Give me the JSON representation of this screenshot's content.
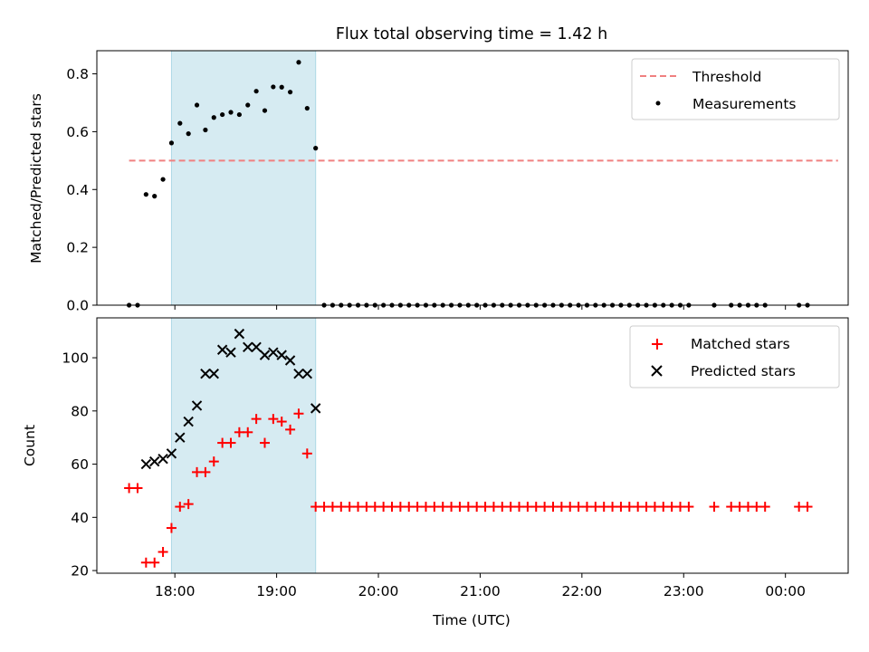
{
  "title": "Flux total observing time = 1.42 h",
  "colors": {
    "threshold": "#f08080",
    "measurements": "#000000",
    "matched": "#ff0000",
    "predicted": "#000000",
    "span": "#add8e6"
  },
  "chart_data": [
    {
      "type": "scatter",
      "title": "Flux total observing time = 1.42 h",
      "xlabel": "",
      "ylabel": "Matched/Predicted stars",
      "ylim": [
        0.0,
        0.88
      ],
      "yticks": [
        0.0,
        0.2,
        0.4,
        0.6,
        0.8
      ],
      "ytick_labels": [
        "0.0",
        "0.2",
        "0.4",
        "0.6",
        "0.8"
      ],
      "xlim": [
        "17:14",
        "24:37"
      ],
      "xticks": [
        "18:00",
        "19:00",
        "20:00",
        "21:00",
        "22:00",
        "23:00",
        "24:00"
      ],
      "shaded_span": [
        "17:58",
        "19:23"
      ],
      "legend_placement": "top-right",
      "threshold": {
        "name": "Threshold",
        "y": 0.5,
        "x_start": "17:33",
        "x_end": "24:31",
        "style": "dashed"
      },
      "series": [
        {
          "name": "Measurements",
          "points": [
            [
              "17:33",
              0.0
            ],
            [
              "17:38",
              0.0
            ],
            [
              "17:43",
              0.383
            ],
            [
              "17:48",
              0.377
            ],
            [
              "17:53",
              0.435
            ],
            [
              "17:58",
              0.561
            ],
            [
              "18:03",
              0.629
            ],
            [
              "18:08",
              0.593
            ],
            [
              "18:13",
              0.692
            ],
            [
              "18:18",
              0.606
            ],
            [
              "18:23",
              0.649
            ],
            [
              "18:28",
              0.659
            ],
            [
              "18:33",
              0.667
            ],
            [
              "18:38",
              0.659
            ],
            [
              "18:43",
              0.692
            ],
            [
              "18:48",
              0.74
            ],
            [
              "18:53",
              0.673
            ],
            [
              "18:58",
              0.755
            ],
            [
              "19:03",
              0.754
            ],
            [
              "19:08",
              0.737
            ],
            [
              "19:13",
              0.84
            ],
            [
              "19:18",
              0.681
            ],
            [
              "19:23",
              0.543
            ],
            [
              "19:28",
              0.0
            ],
            [
              "19:33",
              0.0
            ],
            [
              "19:38",
              0.0
            ],
            [
              "19:43",
              0.0
            ],
            [
              "19:48",
              0.0
            ],
            [
              "19:53",
              0.0
            ],
            [
              "19:58",
              0.0
            ],
            [
              "20:03",
              0.0
            ],
            [
              "20:08",
              0.0
            ],
            [
              "20:13",
              0.0
            ],
            [
              "20:18",
              0.0
            ],
            [
              "20:23",
              0.0
            ],
            [
              "20:28",
              0.0
            ],
            [
              "20:33",
              0.0
            ],
            [
              "20:38",
              0.0
            ],
            [
              "20:43",
              0.0
            ],
            [
              "20:48",
              0.0
            ],
            [
              "20:53",
              0.0
            ],
            [
              "20:58",
              0.0
            ],
            [
              "21:03",
              0.0
            ],
            [
              "21:08",
              0.0
            ],
            [
              "21:13",
              0.0
            ],
            [
              "21:18",
              0.0
            ],
            [
              "21:23",
              0.0
            ],
            [
              "21:28",
              0.0
            ],
            [
              "21:33",
              0.0
            ],
            [
              "21:38",
              0.0
            ],
            [
              "21:43",
              0.0
            ],
            [
              "21:48",
              0.0
            ],
            [
              "21:53",
              0.0
            ],
            [
              "21:58",
              0.0
            ],
            [
              "22:03",
              0.0
            ],
            [
              "22:08",
              0.0
            ],
            [
              "22:13",
              0.0
            ],
            [
              "22:18",
              0.0
            ],
            [
              "22:23",
              0.0
            ],
            [
              "22:28",
              0.0
            ],
            [
              "22:33",
              0.0
            ],
            [
              "22:38",
              0.0
            ],
            [
              "22:43",
              0.0
            ],
            [
              "22:48",
              0.0
            ],
            [
              "22:53",
              0.0
            ],
            [
              "22:58",
              0.0
            ],
            [
              "23:03",
              0.0
            ],
            [
              "23:18",
              0.0
            ],
            [
              "23:28",
              0.0
            ],
            [
              "23:33",
              0.0
            ],
            [
              "23:38",
              0.0
            ],
            [
              "23:43",
              0.0
            ],
            [
              "23:48",
              0.0
            ],
            [
              "24:08",
              0.0
            ],
            [
              "24:13",
              0.0
            ]
          ]
        }
      ]
    },
    {
      "type": "scatter",
      "title": "",
      "xlabel": "Time (UTC)",
      "ylabel": "Count",
      "ylim": [
        19,
        115
      ],
      "yticks": [
        20,
        40,
        60,
        80,
        100
      ],
      "ytick_labels": [
        "20",
        "40",
        "60",
        "80",
        "100"
      ],
      "xlim": [
        "17:14",
        "24:37"
      ],
      "xticks": [
        "18:00",
        "19:00",
        "20:00",
        "21:00",
        "22:00",
        "23:00",
        "24:00"
      ],
      "xtick_labels": [
        "18:00",
        "19:00",
        "20:00",
        "21:00",
        "22:00",
        "23:00",
        "00:00"
      ],
      "shaded_span": [
        "17:58",
        "19:23"
      ],
      "legend_placement": "top-right",
      "series": [
        {
          "name": "Matched stars",
          "marker": "plus",
          "points": [
            [
              "17:33",
              51
            ],
            [
              "17:38",
              51
            ],
            [
              "17:43",
              23
            ],
            [
              "17:48",
              23
            ],
            [
              "17:53",
              27
            ],
            [
              "17:58",
              36
            ],
            [
              "18:03",
              44
            ],
            [
              "18:08",
              45
            ],
            [
              "18:13",
              57
            ],
            [
              "18:18",
              57
            ],
            [
              "18:23",
              61
            ],
            [
              "18:28",
              68
            ],
            [
              "18:33",
              68
            ],
            [
              "18:38",
              72
            ],
            [
              "18:43",
              72
            ],
            [
              "18:48",
              77
            ],
            [
              "18:53",
              68
            ],
            [
              "18:58",
              77
            ],
            [
              "19:03",
              76
            ],
            [
              "19:08",
              73
            ],
            [
              "19:13",
              79
            ],
            [
              "19:18",
              64
            ],
            [
              "19:23",
              44
            ],
            [
              "19:28",
              44
            ],
            [
              "19:33",
              44
            ],
            [
              "19:38",
              44
            ],
            [
              "19:43",
              44
            ],
            [
              "19:48",
              44
            ],
            [
              "19:53",
              44
            ],
            [
              "19:58",
              44
            ],
            [
              "20:03",
              44
            ],
            [
              "20:08",
              44
            ],
            [
              "20:13",
              44
            ],
            [
              "20:18",
              44
            ],
            [
              "20:23",
              44
            ],
            [
              "20:28",
              44
            ],
            [
              "20:33",
              44
            ],
            [
              "20:38",
              44
            ],
            [
              "20:43",
              44
            ],
            [
              "20:48",
              44
            ],
            [
              "20:53",
              44
            ],
            [
              "20:58",
              44
            ],
            [
              "21:03",
              44
            ],
            [
              "21:08",
              44
            ],
            [
              "21:13",
              44
            ],
            [
              "21:18",
              44
            ],
            [
              "21:23",
              44
            ],
            [
              "21:28",
              44
            ],
            [
              "21:33",
              44
            ],
            [
              "21:38",
              44
            ],
            [
              "21:43",
              44
            ],
            [
              "21:48",
              44
            ],
            [
              "21:53",
              44
            ],
            [
              "21:58",
              44
            ],
            [
              "22:03",
              44
            ],
            [
              "22:08",
              44
            ],
            [
              "22:13",
              44
            ],
            [
              "22:18",
              44
            ],
            [
              "22:23",
              44
            ],
            [
              "22:28",
              44
            ],
            [
              "22:33",
              44
            ],
            [
              "22:38",
              44
            ],
            [
              "22:43",
              44
            ],
            [
              "22:48",
              44
            ],
            [
              "22:53",
              44
            ],
            [
              "22:58",
              44
            ],
            [
              "23:03",
              44
            ],
            [
              "23:18",
              44
            ],
            [
              "23:28",
              44
            ],
            [
              "23:33",
              44
            ],
            [
              "23:38",
              44
            ],
            [
              "23:43",
              44
            ],
            [
              "23:48",
              44
            ],
            [
              "24:08",
              44
            ],
            [
              "24:13",
              44
            ]
          ]
        },
        {
          "name": "Predicted stars",
          "marker": "x",
          "points": [
            [
              "17:43",
              60
            ],
            [
              "17:48",
              61
            ],
            [
              "17:53",
              62
            ],
            [
              "17:58",
              64
            ],
            [
              "18:03",
              70
            ],
            [
              "18:08",
              76
            ],
            [
              "18:13",
              82
            ],
            [
              "18:18",
              94
            ],
            [
              "18:23",
              94
            ],
            [
              "18:28",
              103
            ],
            [
              "18:33",
              102
            ],
            [
              "18:38",
              109
            ],
            [
              "18:43",
              104
            ],
            [
              "18:48",
              104
            ],
            [
              "18:53",
              101
            ],
            [
              "18:58",
              102
            ],
            [
              "19:03",
              101
            ],
            [
              "19:08",
              99
            ],
            [
              "19:13",
              94
            ],
            [
              "19:18",
              94
            ],
            [
              "19:23",
              81
            ]
          ]
        }
      ]
    }
  ]
}
